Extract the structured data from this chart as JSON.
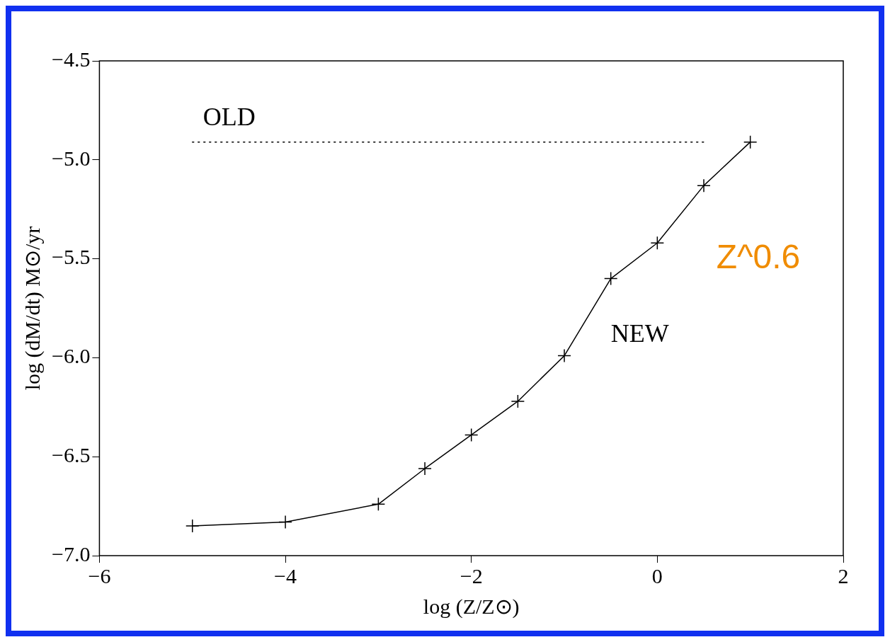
{
  "chart_data": {
    "type": "line",
    "xlabel": "log (Z/Z⊙)",
    "ylabel": "log (dM/dt) M⊙/yr",
    "xlim": [
      -6,
      2
    ],
    "xticks": [
      -6,
      -4,
      -2,
      0,
      2
    ],
    "ylim": [
      -7.0,
      -4.5
    ],
    "yticks": [
      {
        "value": -7.0,
        "label": "−7.0"
      },
      {
        "value": -6.5,
        "label": "−6.5"
      },
      {
        "value": -6.0,
        "label": "−6.0"
      },
      {
        "value": -5.5,
        "label": "−5.5"
      },
      {
        "value": -5.0,
        "label": "−5.0"
      },
      {
        "value": -4.5,
        "label": "−4.5"
      }
    ],
    "grid": false,
    "legend": false,
    "series": [
      {
        "name": "OLD",
        "color": "#000000",
        "x": [
          -5,
          0.5
        ],
        "values": [
          -4.91,
          -4.91
        ],
        "marker": "none",
        "line_style": "dotted"
      },
      {
        "name": "NEW",
        "color": "#000000",
        "x": [
          -5,
          -4,
          -3,
          -2.5,
          -2,
          -1.5,
          -1,
          -0.5,
          0,
          0.5,
          1
        ],
        "values": [
          -6.85,
          -6.83,
          -6.74,
          -6.56,
          -6.39,
          -6.22,
          -5.99,
          -5.6,
          -5.42,
          -5.13,
          -4.91
        ],
        "marker": "cross",
        "line_style": "solid"
      }
    ],
    "annotations": [
      "Z^0.6"
    ]
  }
}
